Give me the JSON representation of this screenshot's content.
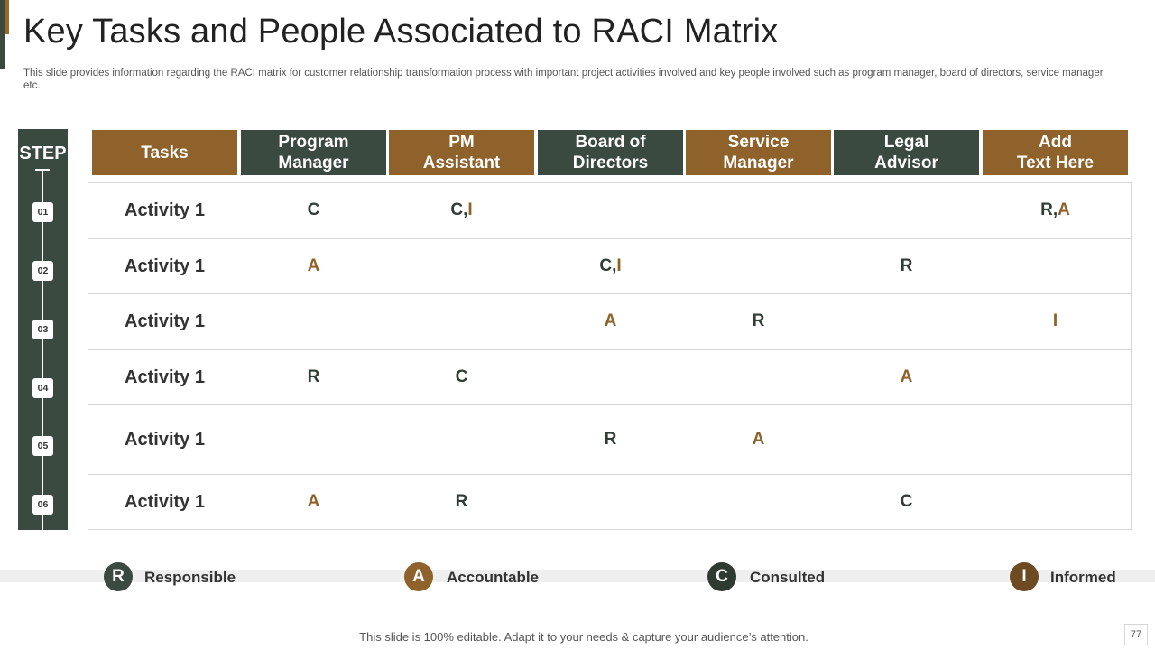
{
  "title": "Key Tasks and People Associated to RACI Matrix",
  "subtitle": "This slide provides information regarding the RACI matrix for customer relationship transformation process with important project activities involved and key people involved such as program manager, board of directors, service manager, etc.",
  "step_label": "STEP",
  "steps": [
    "01",
    "02",
    "03",
    "04",
    "05",
    "06"
  ],
  "headers": [
    "Tasks",
    "Program\nManager",
    "PM\nAssistant",
    "Board of\nDirectors",
    "Service\nManager",
    "Legal\nAdvisor",
    "Add\nText Here"
  ],
  "rows": [
    {
      "task": "Activity 1",
      "cells": [
        "C",
        "C,I",
        "",
        "",
        "",
        "R,A"
      ]
    },
    {
      "task": "Activity 1",
      "cells": [
        "A",
        "",
        "C,I",
        "",
        "R",
        ""
      ]
    },
    {
      "task": "Activity 1",
      "cells": [
        "",
        "",
        "A",
        "R",
        "",
        "I"
      ]
    },
    {
      "task": "Activity 1",
      "cells": [
        "R",
        "C",
        "",
        "",
        "A",
        ""
      ]
    },
    {
      "task": "Activity 1",
      "cells": [
        "",
        "",
        "R",
        "A",
        "",
        ""
      ]
    },
    {
      "task": "Activity 1",
      "cells": [
        "A",
        "R",
        "",
        "",
        "C",
        ""
      ]
    }
  ],
  "legend": [
    {
      "letter": "R",
      "label": "Responsible",
      "color": "#3a4a40"
    },
    {
      "letter": "A",
      "label": "Accountable",
      "color": "#8f612b"
    },
    {
      "letter": "C",
      "label": "Consulted",
      "color": "#2f3a32"
    },
    {
      "letter": "I",
      "label": "Informed",
      "color": "#6e4a22"
    }
  ],
  "colors": {
    "dark": "#3a4a40",
    "brown": "#8f612b"
  },
  "footer": "This slide is 100% editable. Adapt it to your needs & capture your audience’s attention.",
  "page_number": "77"
}
